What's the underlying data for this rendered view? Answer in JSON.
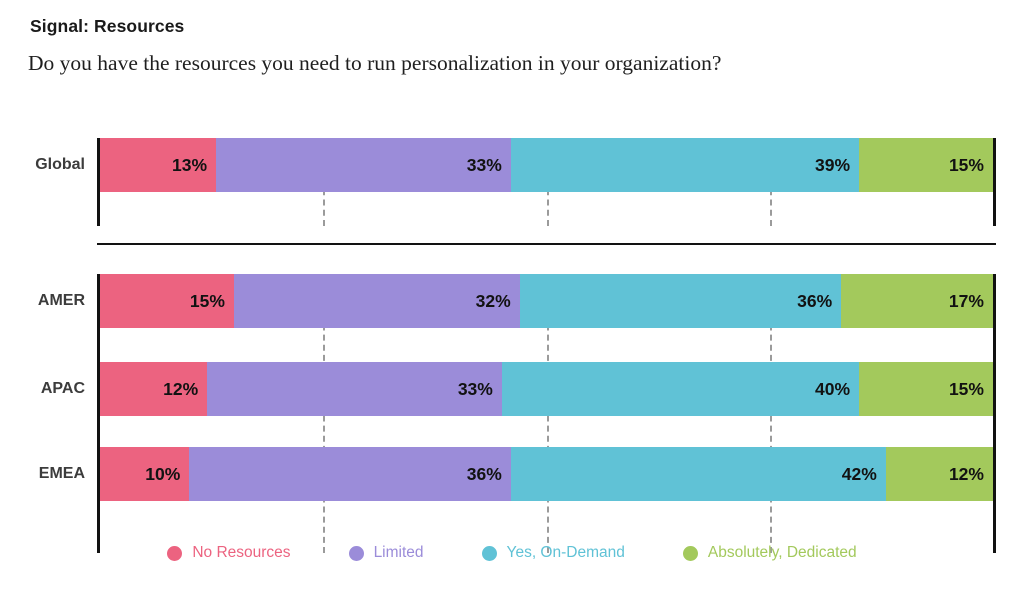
{
  "header": {
    "title": "Signal: Resources",
    "question": "Do you have the resources you need to run personalization in your organization?"
  },
  "chart_data": {
    "type": "bar",
    "stacked": true,
    "orientation": "horizontal",
    "unit": "%",
    "title": "Signal: Resources",
    "subtitle": "Do you have the resources you need to run personalization in your organization?",
    "categories": [
      "Global",
      "AMER",
      "APAC",
      "EMEA"
    ],
    "row_groups": [
      [
        "Global"
      ],
      [
        "AMER",
        "APAC",
        "EMEA"
      ]
    ],
    "series": [
      {
        "name": "No Resources",
        "color": "#EC6380",
        "values": [
          13,
          15,
          12,
          10
        ]
      },
      {
        "name": "Limited",
        "color": "#9B8CD9",
        "values": [
          33,
          32,
          33,
          36
        ]
      },
      {
        "name": "Yes, On-Demand",
        "color": "#60C2D6",
        "values": [
          39,
          36,
          40,
          42
        ]
      },
      {
        "name": "Absolutely, Dedicated",
        "color": "#A3C95C",
        "values": [
          15,
          17,
          15,
          12
        ]
      }
    ],
    "xlim": [
      0,
      100
    ],
    "gridlines_percent": [
      25,
      50,
      75
    ],
    "grid": "dashed-vertical",
    "legend_position": "bottom",
    "value_labels": "inside-right"
  }
}
